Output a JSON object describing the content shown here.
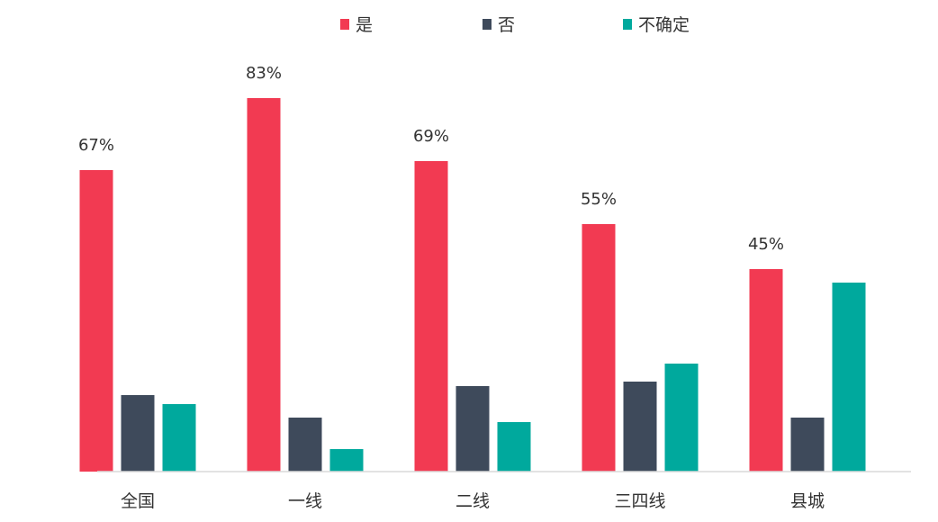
{
  "chart_data": {
    "type": "bar",
    "categories": [
      "全国",
      "一线",
      "二线",
      "三四线",
      "县城"
    ],
    "series": [
      {
        "name": "是",
        "color": "#F23A52",
        "values": [
          67,
          83,
          69,
          55,
          45
        ]
      },
      {
        "name": "否",
        "color": "#3E4A5B",
        "values": [
          17,
          12,
          19,
          20,
          12
        ]
      },
      {
        "name": "不确定",
        "color": "#00A99D",
        "values": [
          15,
          5,
          11,
          24,
          42
        ]
      }
    ],
    "data_labels": [
      "67%",
      "83%",
      "69%",
      "55%",
      "45%"
    ],
    "ylim": [
      0,
      100
    ],
    "legend_position": "top-center",
    "grid": false
  }
}
